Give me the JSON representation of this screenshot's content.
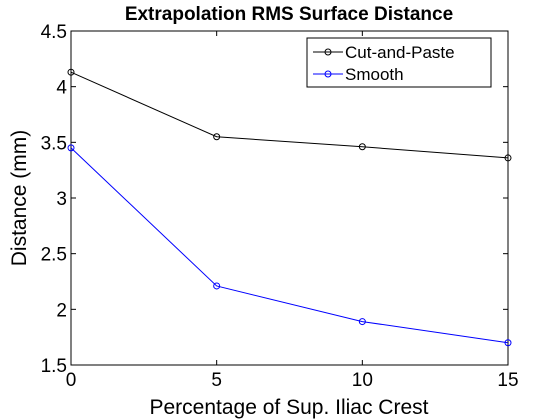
{
  "chart_data": {
    "type": "line",
    "title": "Extrapolation RMS Surface Distance",
    "xlabel": "Percentage of Sup. Iliac Crest",
    "ylabel": "Distance (mm)",
    "x": [
      0,
      5,
      10,
      15
    ],
    "xlim": [
      0,
      15
    ],
    "ylim": [
      1.5,
      4.5
    ],
    "xticks": [
      "0",
      "5",
      "10",
      "15"
    ],
    "yticks": [
      "1.5",
      "2",
      "2.5",
      "3",
      "3.5",
      "4",
      "4.5"
    ],
    "grid": false,
    "legend_position": "top-right",
    "series": [
      {
        "name": "Cut-and-Paste",
        "color": "#000000",
        "marker": "circle",
        "values": [
          4.13,
          3.55,
          3.46,
          3.36
        ]
      },
      {
        "name": "Smooth",
        "color": "#0000ff",
        "marker": "circle",
        "values": [
          3.45,
          2.21,
          1.89,
          1.7
        ]
      }
    ]
  }
}
